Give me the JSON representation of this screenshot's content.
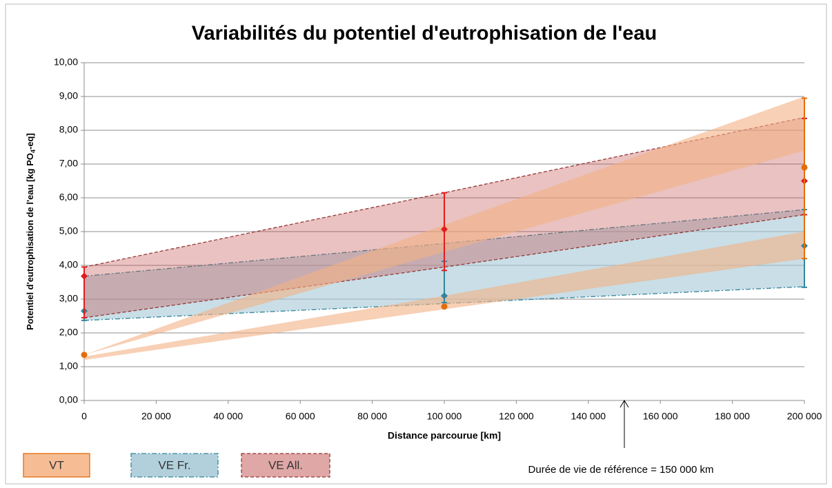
{
  "chart_data": {
    "type": "band",
    "title": "Variabilités du potentiel d'eutrophisation de l'eau",
    "x_label": "Distance parcourue [km]",
    "y_label": [
      "Potentiel d'eutrophisation de l'eau [kg PO",
      "4",
      "-eq]"
    ],
    "xlim": [
      0,
      200000
    ],
    "xticks": [
      0,
      {
        "value": 20000,
        "label": "20 000"
      },
      {
        "value": 40000,
        "label": "40 000"
      },
      {
        "value": 60000,
        "label": "60 000"
      },
      {
        "value": 80000,
        "label": "80 000"
      },
      {
        "value": 100000,
        "label": "100 000"
      },
      {
        "value": 120000,
        "label": "120 000"
      },
      {
        "value": 140000,
        "label": "140 000"
      },
      {
        "value": 160000,
        "label": "160 000"
      },
      {
        "value": 180000,
        "label": "180 000"
      },
      {
        "value": 200000,
        "label": "200 000"
      }
    ],
    "ylim": [
      0,
      10
    ],
    "yticks": [
      {
        "value": 0,
        "label": "0,00"
      },
      {
        "value": 1,
        "label": "1,00"
      },
      {
        "value": 2,
        "label": "2,00"
      },
      {
        "value": 3,
        "label": "3,00"
      },
      {
        "value": 4,
        "label": "4,00"
      },
      {
        "value": 5,
        "label": "5,00"
      },
      {
        "value": 6,
        "label": "6,00"
      },
      {
        "value": 7,
        "label": "7,00"
      },
      {
        "value": 8,
        "label": "8,00"
      },
      {
        "value": 9,
        "label": "9,00"
      },
      {
        "value": 10,
        "label": "10,00"
      }
    ],
    "grid": true,
    "x": [
      0,
      100000,
      200000
    ],
    "series": [
      {
        "name": "VE Fr.",
        "color": "#31859c",
        "fill": "#a5c8d6",
        "dash": "dashdot",
        "bands": [
          {
            "upper": [
              3.68,
              4.65,
              5.65
            ],
            "lower": [
              2.37,
              2.87,
              3.37
            ]
          }
        ],
        "points": {
          "y": [
            2.65,
            3.1,
            4.58
          ],
          "low": [
            2.37,
            2.9,
            3.35
          ],
          "high": [
            3.68,
            4.12,
            5.65
          ]
        }
      },
      {
        "name": "VE All.",
        "color": "#943634",
        "fill": "#c0504d",
        "dash": "dash",
        "bands": [
          {
            "upper": [
              3.95,
              6.15,
              8.38
            ],
            "lower": [
              2.45,
              3.95,
              5.5
            ]
          }
        ],
        "points": {
          "y": [
            3.68,
            5.07,
            6.5
          ],
          "low": [
            2.45,
            3.85,
            5.5
          ],
          "high": [
            3.95,
            6.15,
            8.35
          ]
        }
      },
      {
        "name": "VT",
        "color": "#e46c0a",
        "fill": "#f4b183",
        "dash": "none",
        "bands": [
          {
            "upper": [
              1.35,
              5.2,
              9.0
            ],
            "lower": [
              1.35,
              4.4,
              7.4
            ]
          },
          {
            "upper": [
              1.3,
              3.1,
              5.0
            ],
            "lower": [
              1.2,
              2.7,
              4.2
            ]
          }
        ],
        "points": {
          "y": [
            1.35,
            2.78,
            6.9
          ],
          "low": [
            1.35,
            2.78,
            4.2
          ],
          "high": [
            1.35,
            2.78,
            8.95
          ]
        }
      }
    ],
    "annotation": {
      "text": "Durée de vie de référence = 150 000 km",
      "x": 150000
    }
  }
}
